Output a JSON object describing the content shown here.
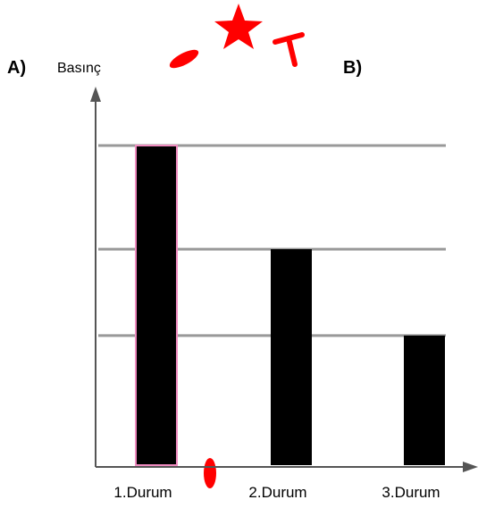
{
  "labels": {
    "panel_a": "A)",
    "panel_b": "B)"
  },
  "chart_data": {
    "type": "bar",
    "categories": [
      "1.Durum",
      "2.Durum",
      "3.Durum"
    ],
    "values": [
      3.7,
      2.5,
      1.5
    ],
    "ylabel": "Basınç",
    "xlabel": "",
    "ylim": [
      0,
      4
    ],
    "gridlines": [
      1.5,
      2.5,
      3.7
    ],
    "grid": true,
    "legend": "none",
    "colors": {
      "bar": "#000000",
      "highlight_outline": "#f08cc0",
      "grid": "#999999",
      "axis": "#555555",
      "marks": "#ff0000"
    },
    "highlighted_category": "1.Durum"
  },
  "decorations": [
    "red-star-icon",
    "red-t-mark",
    "red-ellipse-mark"
  ]
}
